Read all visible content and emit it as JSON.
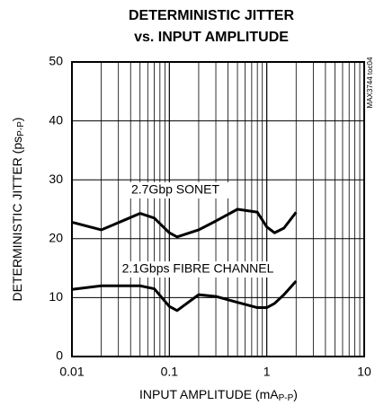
{
  "chart_data": {
    "type": "line",
    "title": [
      "DETERMINISTIC JITTER",
      "vs. INPUT AMPLITUDE"
    ],
    "ylabel": [
      "DETERMINISTIC JITTER (ps",
      "P-P",
      ")"
    ],
    "xlabel": [
      "INPUT AMPLITUDE (mA",
      "P-P",
      ")"
    ],
    "watermark": "MAX3744 toc04",
    "xscale": "log",
    "grid": true,
    "xlim": [
      0.01,
      10
    ],
    "xticks": [
      0.01,
      0.1,
      1,
      10
    ],
    "xgrid_minor": [
      0.02,
      0.03,
      0.04,
      0.05,
      0.06,
      0.07,
      0.08,
      0.09,
      0.2,
      0.3,
      0.4,
      0.5,
      0.6,
      0.7,
      0.8,
      0.9,
      2,
      3,
      4,
      5,
      6,
      7,
      8,
      9
    ],
    "ylim": [
      0,
      50
    ],
    "yticks": [
      0,
      10,
      20,
      30,
      40,
      50
    ],
    "x": [
      0.01,
      0.02,
      0.035,
      0.05,
      0.07,
      0.1,
      0.12,
      0.2,
      0.3,
      0.5,
      0.8,
      1,
      1.2,
      1.5,
      2
    ],
    "series": [
      {
        "name": "2.7Gbp SONET",
        "color": "#000000",
        "values": [
          22.8,
          21.5,
          23.2,
          24.3,
          23.5,
          21,
          20.3,
          21.5,
          23,
          25,
          24.5,
          22,
          21,
          21.8,
          24.5
        ]
      },
      {
        "name": "2.1Gbps FIBRE CHANNEL",
        "color": "#000000",
        "values": [
          11.4,
          12,
          12,
          12,
          11.5,
          8.5,
          7.8,
          10.5,
          10.2,
          9.2,
          8.3,
          8.3,
          9,
          10.5,
          12.8
        ]
      }
    ]
  }
}
